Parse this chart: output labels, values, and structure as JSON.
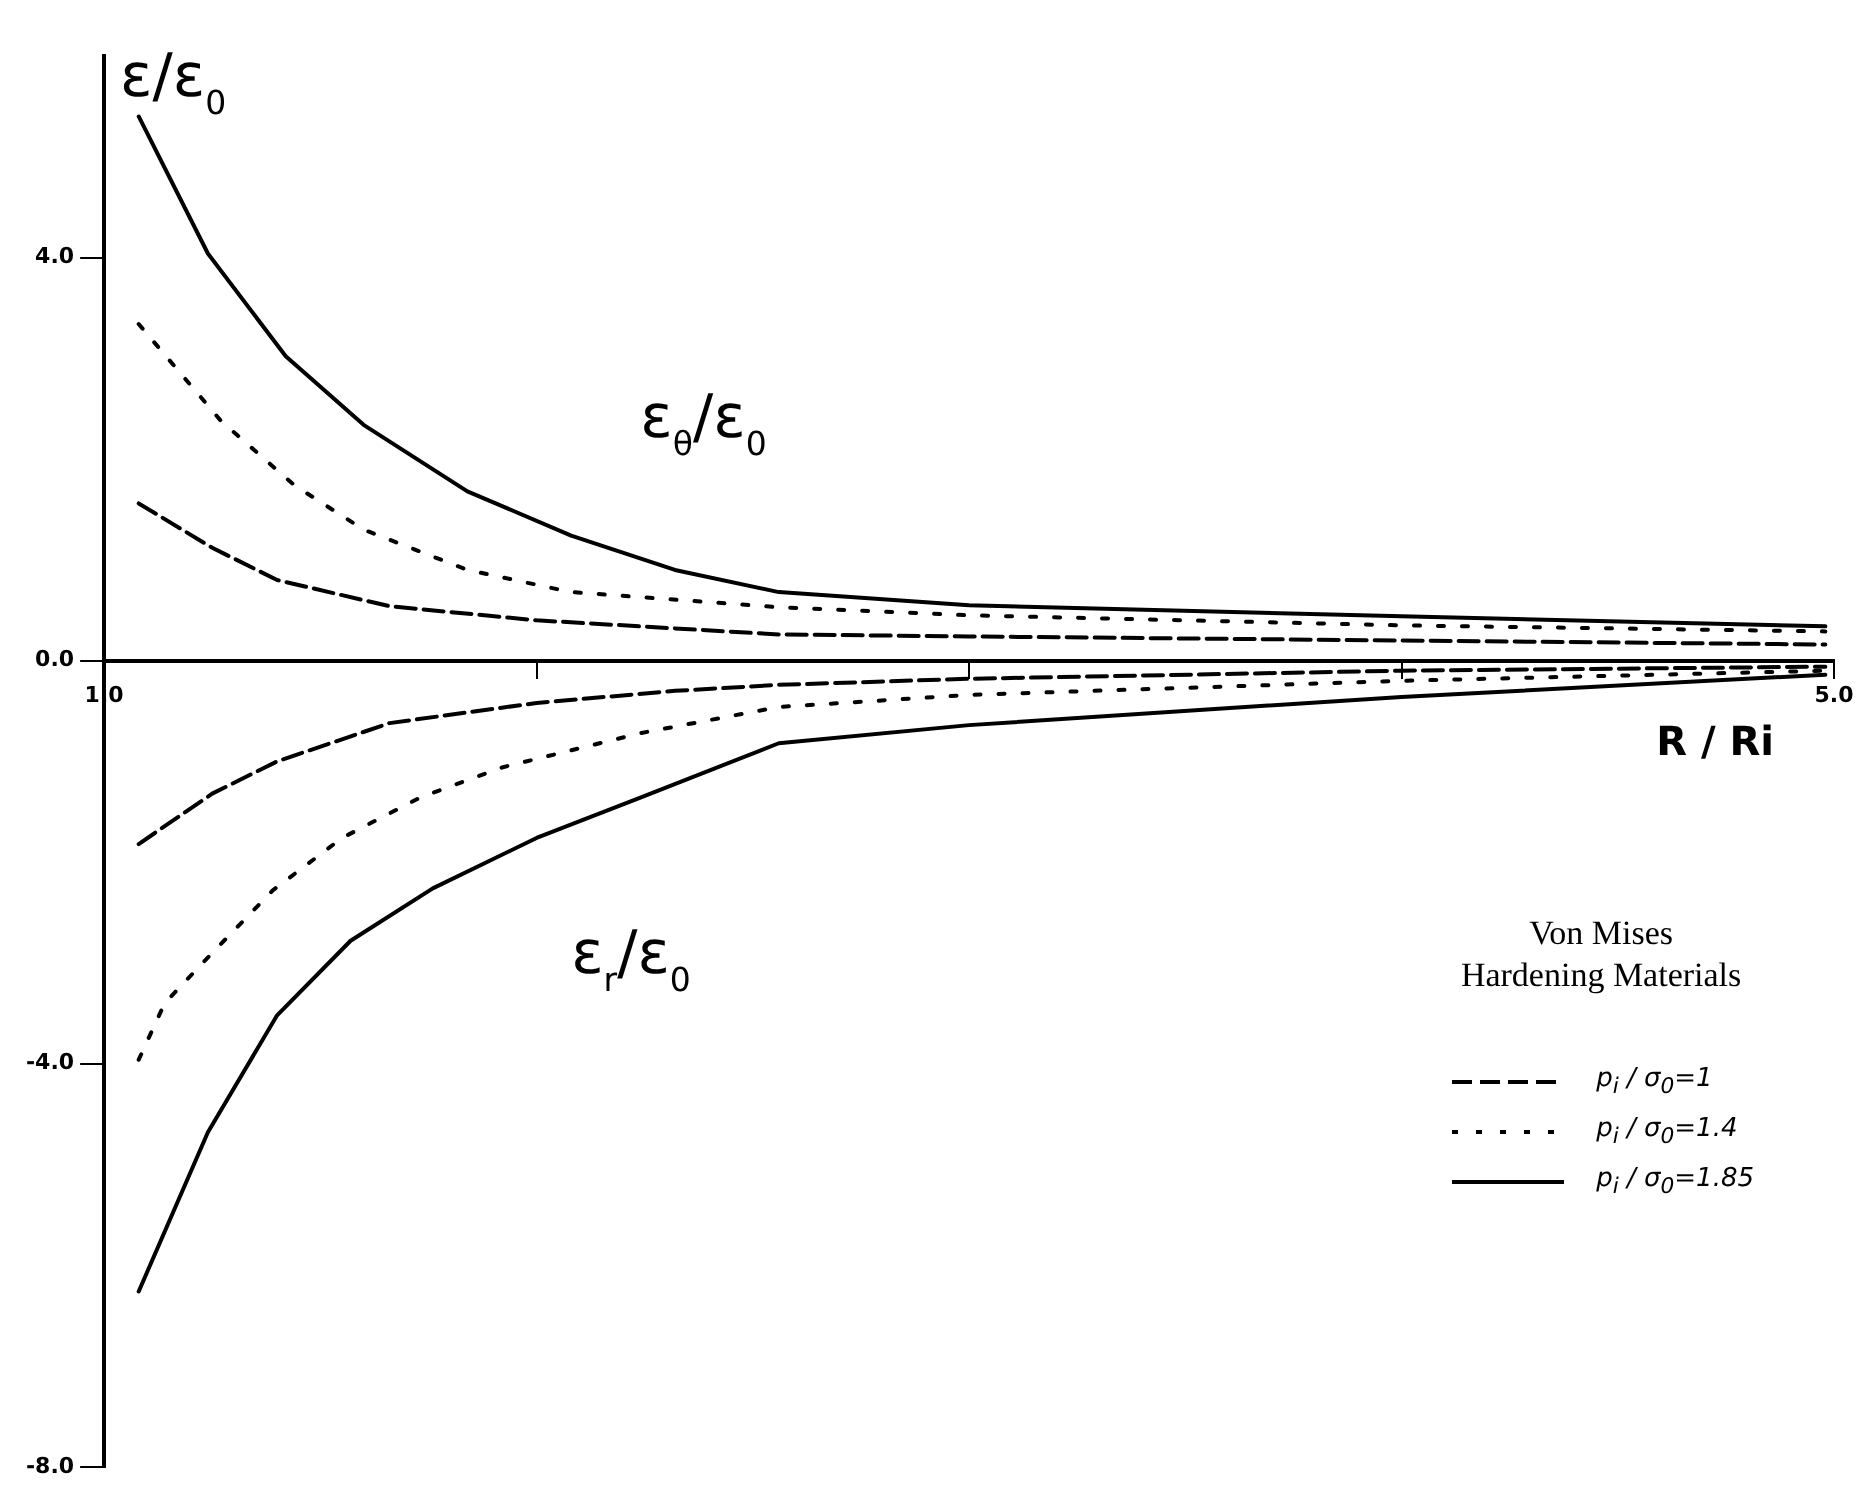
{
  "chart_data": {
    "type": "line",
    "xlabel": "R / Ri",
    "ylabel": "ε/ε$_{0}$",
    "legend_title": "Von Mises\nHardening Materials",
    "legend": "bottom right",
    "marker": "none",
    "xlim": [
      1,
      5
    ],
    "ylim": [
      -8,
      6
    ],
    "xticks": [
      {
        "value": 1,
        "label": "1.0"
      },
      {
        "value": 2,
        "label": null
      },
      {
        "value": 3,
        "label": null
      },
      {
        "value": 4,
        "label": null
      },
      {
        "value": 5,
        "label": "5.0"
      }
    ],
    "yticks": [
      {
        "value": 4,
        "label": "4.0"
      },
      {
        "value": 0,
        "label": "0.0"
      },
      {
        "value": -4,
        "label": "-4.0"
      },
      {
        "value": -8,
        "label": "-8.0"
      }
    ],
    "series": [
      {
        "name": "p$_{i}$ / σ$_{0}$=1",
        "color": "#000000",
        "line_style": "dashed",
        "x": [
          1.08,
          1.25,
          1.4,
          1.66,
          2.0,
          2.32,
          2.56,
          3.0,
          4.0,
          4.98
        ],
        "values": [
          1.56,
          1.12,
          0.8,
          0.54,
          0.4,
          0.32,
          0.26,
          0.24,
          0.2,
          0.16
        ]
      },
      {
        "name": "p$_{i}$ / σ$_{0}$=1.4",
        "color": "#000000",
        "line_style": "dotted",
        "x": [
          1.08,
          1.27,
          1.44,
          1.6,
          1.84,
          2.08,
          2.56,
          3.0,
          4.0,
          4.98
        ],
        "values": [
          3.34,
          2.38,
          1.74,
          1.3,
          0.9,
          0.68,
          0.53,
          0.45,
          0.35,
          0.29
        ]
      },
      {
        "name": "p$_{i}$ / σ$_{0}$=1.85",
        "color": "#000000",
        "line_style": "solid",
        "x": [
          1.08,
          1.24,
          1.42,
          1.6,
          1.84,
          2.08,
          2.32,
          2.56,
          3.0,
          4.0,
          4.98
        ],
        "values": [
          5.4,
          4.04,
          3.02,
          2.34,
          1.68,
          1.24,
          0.9,
          0.68,
          0.55,
          0.44,
          0.34
        ]
      },
      {
        "color": "#000000",
        "line_style": "dashed",
        "x": [
          1.08,
          1.25,
          1.4,
          1.66,
          2.0,
          2.32,
          2.56,
          3.0,
          4.0,
          4.98
        ],
        "values": [
          -1.82,
          -1.32,
          -1.0,
          -0.62,
          -0.42,
          -0.3,
          -0.24,
          -0.18,
          -0.1,
          -0.06
        ]
      },
      {
        "color": "#000000",
        "line_style": "dotted",
        "x": [
          1.08,
          1.14,
          1.25,
          1.39,
          1.55,
          1.73,
          1.92,
          2.24,
          2.56,
          3.0,
          4.0,
          4.98
        ],
        "values": [
          -3.96,
          -3.4,
          -2.9,
          -2.28,
          -1.76,
          -1.36,
          -1.06,
          -0.72,
          -0.46,
          -0.34,
          -0.2,
          -0.1
        ]
      },
      {
        "color": "#000000",
        "line_style": "solid",
        "x": [
          1.08,
          1.24,
          1.4,
          1.57,
          1.76,
          2.0,
          2.24,
          2.56,
          3.0,
          4.0,
          4.98
        ],
        "values": [
          -6.26,
          -4.68,
          -3.52,
          -2.78,
          -2.26,
          -1.76,
          -1.36,
          -0.82,
          -0.64,
          -0.36,
          -0.14
        ]
      }
    ],
    "annotations": [
      "ε$_{θ}$/ε$_{0}$",
      "ε$_{r}$/ε$_{0}$"
    ]
  }
}
